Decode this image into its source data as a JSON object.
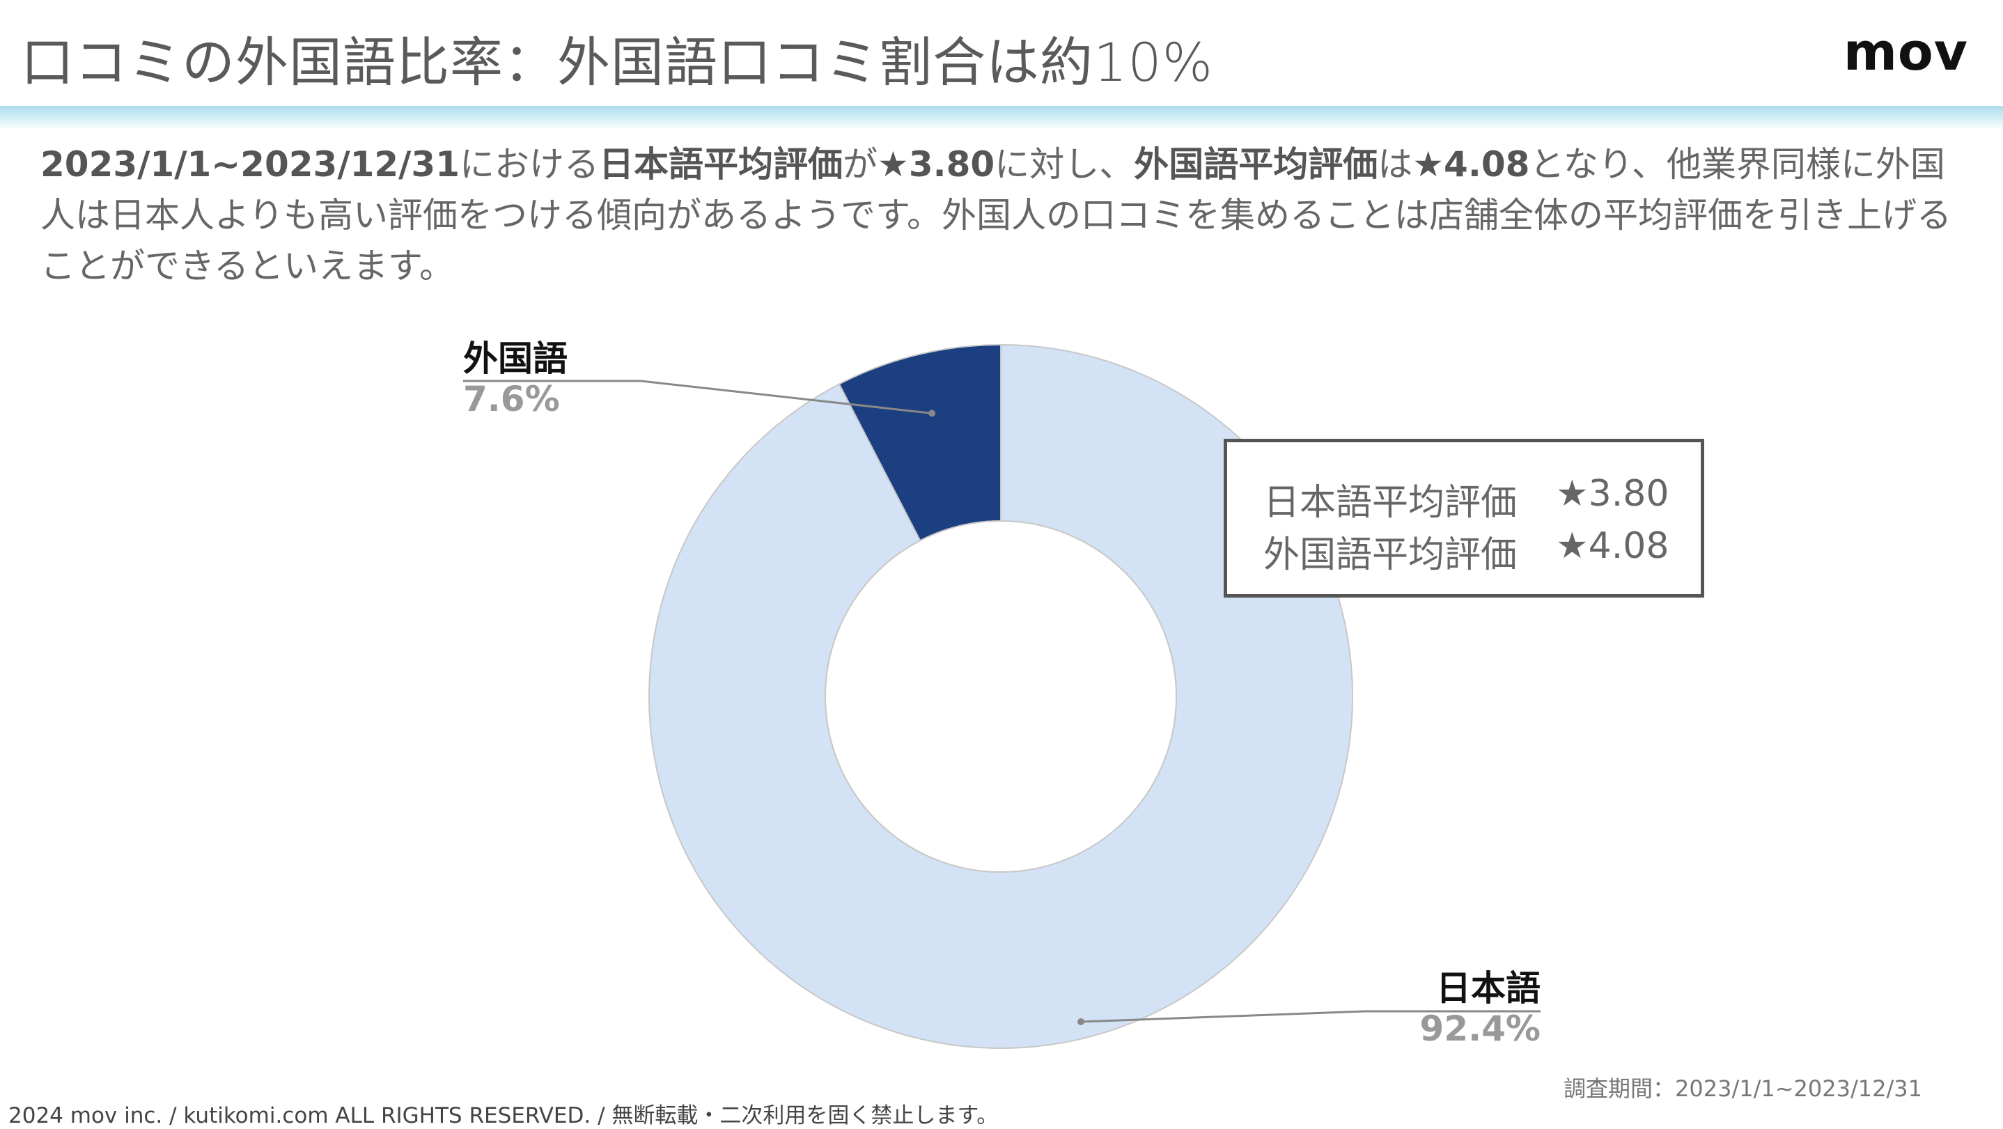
{
  "header": {
    "title": "口コミの外国語比率：外国語口コミ割合は約10%",
    "logo": "mov"
  },
  "description": {
    "period": "2023/1/1~2023/12/31",
    "t1": "における",
    "jp_label": "日本語平均評価",
    "t2": "が",
    "jp_rating": "★3.80",
    "t3": "に対し、",
    "foreign_label": "外国語平均評価",
    "t4": "は",
    "foreign_rating": "★4.08",
    "t5": "となり、他業界同様に外国人は日本人よりも高い評価をつける傾向があるようです。外国人の口コミを集めることは店舗全体の平均評価を引き上げることができるといえます。"
  },
  "legend_box": {
    "rows": [
      {
        "label": "日本語平均評価",
        "value": "★3.80"
      },
      {
        "label": "外国語平均評価",
        "value": "★4.08"
      }
    ]
  },
  "colors": {
    "japanese": "#d3e2f4",
    "foreign": "#1b3f80",
    "leader": "#888888"
  },
  "chart_data": {
    "type": "pie",
    "donut": true,
    "categories": [
      "外国語",
      "日本語"
    ],
    "values": [
      7.6,
      92.4
    ],
    "value_labels": [
      "7.6%",
      "92.4%"
    ]
  },
  "survey_period": "調査期間：2023/1/1~2023/12/31",
  "footer": "2024 mov inc. / kutikomi.com ALL RIGHTS RESERVED. / 無断転載・二次利用を固く禁止します。"
}
